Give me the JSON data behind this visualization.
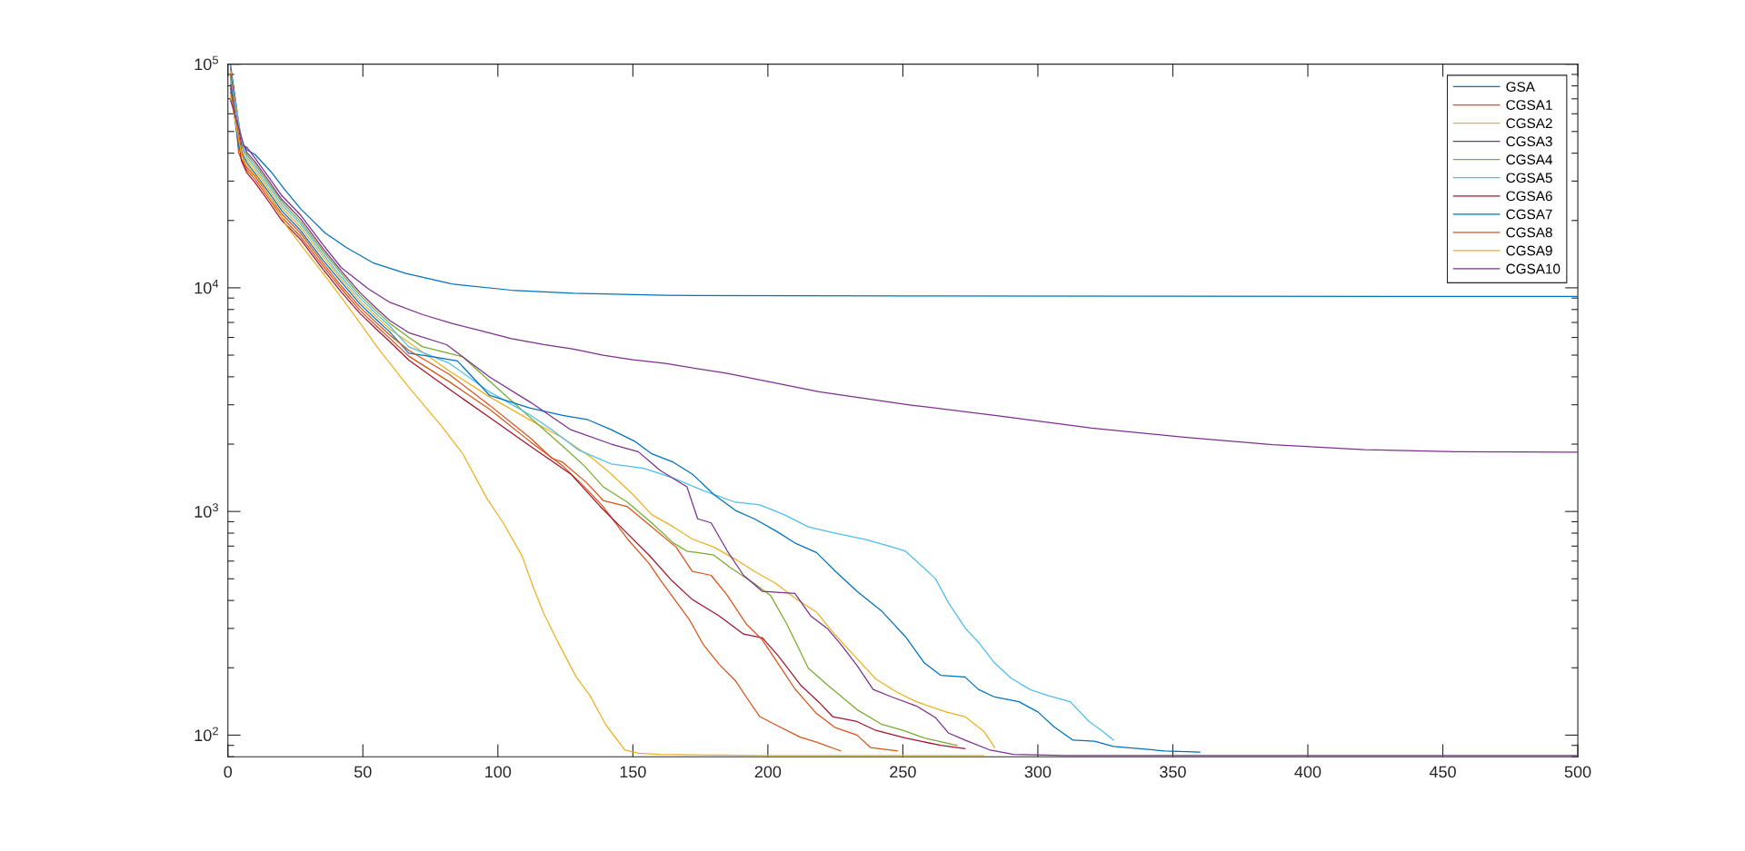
{
  "chart_data": {
    "type": "line",
    "log": "y",
    "legend": "top right",
    "xlim": [
      0,
      500
    ],
    "ylim": [
      80,
      100000
    ],
    "xticks": [
      0,
      50,
      100,
      150,
      200,
      250,
      300,
      350,
      400,
      450,
      500
    ],
    "yticks": [
      {
        "value": 100,
        "label": "10$^{2}$"
      },
      {
        "value": 1000,
        "label": "10$^{3}$"
      },
      {
        "value": 10000,
        "label": "10$^{4}$"
      },
      {
        "value": 100000,
        "label": "10$^{5}$"
      }
    ],
    "series": [
      {
        "name": "GSA",
        "color": "#0072bd",
        "x": [
          1,
          5,
          7,
          10,
          16,
          21,
          27,
          36,
          44,
          54,
          66,
          83,
          105,
          128,
          162,
          250,
          350,
          500
        ],
        "values": [
          99000,
          45000,
          41400,
          39500,
          33000,
          27500,
          22500,
          17600,
          15100,
          12900,
          11600,
          10400,
          9760,
          9460,
          9250,
          9200,
          9170,
          9150
        ]
      },
      {
        "name": "CGSA1",
        "color": "#d95319",
        "x": [
          1,
          4,
          7,
          10,
          15,
          20,
          27,
          35,
          42,
          49,
          55,
          60,
          67,
          82,
          97,
          112,
          124,
          132,
          139,
          148,
          156,
          160,
          171,
          176,
          182,
          188,
          192,
          197,
          203,
          212,
          218,
          227
        ],
        "values": [
          96000,
          40000,
          33600,
          30600,
          25200,
          20700,
          16900,
          12600,
          9900,
          7920,
          6750,
          5940,
          4950,
          3800,
          2860,
          2050,
          1600,
          1290,
          1050,
          753,
          586,
          497,
          327,
          255,
          207,
          175,
          148,
          121,
          111,
          98,
          93,
          85
        ]
      },
      {
        "name": "CGSA2",
        "color": "#edb120",
        "x": [
          1,
          6,
          7,
          10,
          15,
          20,
          27,
          35,
          42,
          49,
          55,
          60,
          67,
          82,
          97,
          112,
          124,
          135,
          142,
          150,
          157,
          165,
          172,
          180,
          188,
          195,
          203,
          210,
          218,
          225,
          233,
          240,
          248,
          255,
          266,
          273,
          280,
          284
        ],
        "values": [
          93000,
          38500,
          37300,
          33700,
          27700,
          22800,
          18600,
          13900,
          10900,
          8710,
          7430,
          6530,
          5700,
          4250,
          3250,
          2560,
          2130,
          1730,
          1470,
          1190,
          968,
          853,
          753,
          693,
          611,
          540,
          476,
          410,
          355,
          280,
          220,
          178,
          155,
          141,
          127,
          121,
          104,
          88
        ]
      },
      {
        "name": "CGSA3",
        "color": "#7e2f8e",
        "x": [
          1,
          5,
          7,
          10,
          15,
          20,
          27,
          35,
          42,
          52,
          60,
          72,
          83,
          94,
          105,
          117,
          128,
          139,
          150,
          162,
          185,
          219,
          253,
          286,
          320,
          354,
          387,
          421,
          455,
          500
        ],
        "values": [
          90000,
          43500,
          42500,
          38100,
          31400,
          25800,
          21100,
          15700,
          12300,
          9900,
          8610,
          7600,
          6930,
          6410,
          5930,
          5570,
          5320,
          5000,
          4770,
          4590,
          4140,
          3430,
          2990,
          2670,
          2360,
          2150,
          1990,
          1890,
          1850,
          1840
        ]
      },
      {
        "name": "CGSA4",
        "color": "#77ac30",
        "x": [
          1,
          4,
          7,
          10,
          15,
          20,
          27,
          35,
          42,
          49,
          55,
          60,
          67,
          72,
          87,
          102,
          112,
          124,
          132,
          139,
          148,
          157,
          165,
          170,
          180,
          186,
          195,
          201,
          207,
          215,
          222,
          233,
          242,
          250,
          258,
          270
        ],
        "values": [
          87000,
          45000,
          39300,
          35700,
          29400,
          24200,
          19700,
          14700,
          11600,
          9240,
          7880,
          6930,
          6000,
          5460,
          4910,
          3370,
          2630,
          1960,
          1600,
          1290,
          1100,
          889,
          723,
          665,
          638,
          562,
          476,
          421,
          314,
          199,
          168,
          130,
          112,
          105,
          97,
          90
        ]
      },
      {
        "name": "CGSA5",
        "color": "#4dbeee",
        "x": [
          1,
          6,
          7,
          10,
          15,
          20,
          27,
          35,
          42,
          49,
          55,
          60,
          67,
          82,
          97,
          112,
          120,
          130,
          142,
          154,
          165,
          176,
          188,
          197,
          206,
          215,
          225,
          236,
          245,
          251,
          255,
          262,
          267,
          273,
          278,
          284,
          290,
          297,
          304,
          312,
          319,
          324,
          328
        ],
        "values": [
          84000,
          40500,
          38300,
          34700,
          28600,
          23500,
          19200,
          14300,
          11200,
          8980,
          7650,
          6730,
          5450,
          4600,
          3420,
          2700,
          2320,
          1880,
          1630,
          1560,
          1410,
          1240,
          1100,
          1070,
          968,
          853,
          800,
          750,
          699,
          664,
          600,
          502,
          389,
          302,
          260,
          210,
          180,
          160,
          150,
          141,
          115,
          104,
          95
        ]
      },
      {
        "name": "CGSA6",
        "color": "#a2142f",
        "x": [
          1,
          5,
          7,
          10,
          15,
          20,
          27,
          35,
          42,
          49,
          55,
          60,
          67,
          82,
          97,
          112,
          127,
          138,
          147,
          156,
          164,
          172,
          182,
          191,
          198,
          204,
          212,
          219,
          224,
          233,
          240,
          251,
          264,
          273
        ],
        "values": [
          81000,
          37000,
          32700,
          29600,
          24400,
          20000,
          16400,
          12200,
          9570,
          7660,
          6530,
          5740,
          4750,
          3520,
          2630,
          1960,
          1470,
          1050,
          818,
          638,
          497,
          404,
          341,
          283,
          272,
          225,
          168,
          140,
          121,
          115,
          105,
          97,
          90,
          87
        ]
      },
      {
        "name": "CGSA7",
        "color": "#0072bd",
        "x": [
          1,
          4,
          7,
          10,
          15,
          20,
          27,
          35,
          42,
          49,
          55,
          60,
          67,
          76,
          85,
          97,
          112,
          124,
          133,
          142,
          151,
          157,
          165,
          172,
          180,
          188,
          195,
          203,
          210,
          218,
          225,
          233,
          242,
          251,
          258,
          264,
          273,
          278,
          284,
          293,
          300,
          306,
          313,
          321,
          328,
          347,
          360
        ],
        "values": [
          78000,
          42500,
          36300,
          32600,
          26900,
          22100,
          18000,
          13400,
          10600,
          8450,
          7200,
          6340,
          5100,
          4910,
          4710,
          3300,
          2900,
          2690,
          2580,
          2320,
          2050,
          1810,
          1660,
          1470,
          1190,
          1010,
          927,
          818,
          723,
          655,
          540,
          440,
          360,
          275,
          210,
          185,
          182,
          160,
          148,
          141,
          127,
          109,
          95,
          94,
          89,
          85,
          84
        ]
      },
      {
        "name": "CGSA8",
        "color": "#d95319",
        "x": [
          1,
          6,
          7,
          10,
          15,
          20,
          27,
          35,
          42,
          49,
          55,
          60,
          67,
          82,
          97,
          112,
          120,
          124,
          133,
          139,
          148,
          157,
          166,
          172,
          179,
          185,
          192,
          198,
          203,
          210,
          218,
          225,
          233,
          238,
          248
        ],
        "values": [
          75000,
          36000,
          34500,
          31600,
          26000,
          21400,
          17500,
          13000,
          10200,
          8180,
          6980,
          6140,
          5250,
          4100,
          2980,
          2130,
          1730,
          1660,
          1340,
          1120,
          1050,
          853,
          693,
          540,
          518,
          421,
          314,
          266,
          216,
          161,
          125,
          108,
          100,
          88,
          85
        ]
      },
      {
        "name": "CGSA9",
        "color": "#edb120",
        "x": [
          1,
          5,
          7,
          11,
          16,
          22,
          29,
          38,
          47,
          56,
          67,
          79,
          87,
          96,
          102,
          109,
          113,
          117,
          122,
          129,
          134,
          140,
          147,
          152,
          160,
          200,
          280
        ],
        "values": [
          72000,
          39500,
          35400,
          31000,
          25000,
          18700,
          14500,
          10500,
          7500,
          5300,
          3590,
          2420,
          1810,
          1140,
          889,
          631,
          462,
          350,
          264,
          182,
          151,
          111,
          86,
          83,
          82,
          81,
          81
        ]
      },
      {
        "name": "CGSA10",
        "color": "#7e2f8e",
        "x": [
          1,
          6,
          7,
          10,
          15,
          20,
          27,
          35,
          42,
          49,
          55,
          60,
          67,
          81,
          97,
          112,
          127,
          142,
          152,
          160,
          170,
          174,
          179,
          185,
          191,
          198,
          210,
          216,
          222,
          227,
          233,
          239,
          246,
          255,
          262,
          267,
          273,
          282,
          291,
          310,
          500
        ],
        "values": [
          69000,
          43000,
          40300,
          36700,
          30200,
          24800,
          20300,
          15100,
          11900,
          9500,
          8100,
          7130,
          6300,
          5570,
          3990,
          3080,
          2320,
          2000,
          1850,
          1530,
          1290,
          927,
          889,
          665,
          518,
          439,
          430,
          340,
          300,
          255,
          205,
          160,
          148,
          135,
          120,
          102,
          95,
          86,
          82,
          81,
          81
        ]
      }
    ]
  }
}
